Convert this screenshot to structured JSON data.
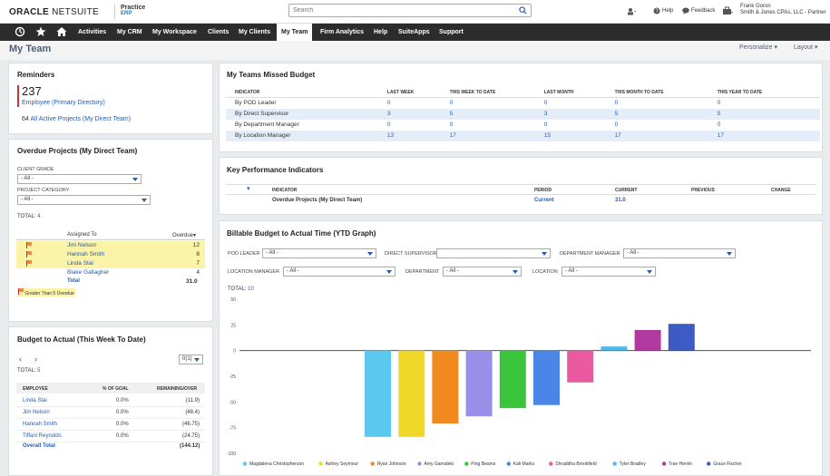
{
  "header": {
    "logo_oracle": "ORACLE",
    "logo_netsuite": "NETSUITE",
    "practice_top": "Practice",
    "practice_bottom": "ERP",
    "search_placeholder": "Search",
    "help": "Help",
    "feedback": "Feedback",
    "user_name": "Frank Goron",
    "user_company": "Smith & Jones CPAs, LLC - Partner"
  },
  "nav": [
    "Activities",
    "My CRM",
    "My Workspace",
    "Clients",
    "My Clients",
    "My Team",
    "Firm Analytics",
    "Help",
    "SuiteApps",
    "Support"
  ],
  "page": {
    "title": "My Team",
    "personalize": "Personalize",
    "layout": "Layout"
  },
  "reminders": {
    "title": "Reminders",
    "count": "237",
    "count_label": "Employee (Primary Directory)",
    "active_count": "64",
    "active_label": "All Active Projects (My Direct Team)"
  },
  "overdue": {
    "title": "Overdue Projects (My Direct Team)",
    "grade_label": "CLIENT GRADE",
    "grade_value": "- All -",
    "category_label": "PROJECT CATEGORY",
    "category_value": "- All -",
    "total_label": "TOTAL:",
    "total_value": "4",
    "col_assigned": "Assigned To",
    "col_overdue": "Overdue",
    "rows": [
      {
        "name": "Jim Nelson",
        "value": "12",
        "flag": true
      },
      {
        "name": "Hannah Smith",
        "value": "8",
        "flag": true
      },
      {
        "name": "Linda Stai",
        "value": "7",
        "flag": true
      },
      {
        "name": "Blake Gallagher",
        "value": "4",
        "flag": false
      }
    ],
    "total_row_label": "Total",
    "total_row_value": "31.0",
    "legend": "Greater Than 5 Overdue"
  },
  "budget_actual": {
    "title": "Budget to Actual (This Week To Date)",
    "pager": "0(1)",
    "total_label": "TOTAL:",
    "total_value": "5",
    "cols": [
      "EMPLOYEE",
      "% OF GOAL",
      "REMAINING/OVER"
    ],
    "rows": [
      {
        "name": "Linda Stai",
        "pct": "0.0%",
        "rem": "(11.9)"
      },
      {
        "name": "Jim Nelson",
        "pct": "0.0%",
        "rem": "(48.4)"
      },
      {
        "name": "Hannah Smith",
        "pct": "0.0%",
        "rem": "(46.75)"
      },
      {
        "name": "Tiffani Reynolds",
        "pct": "0.0%",
        "rem": "(24.75)"
      }
    ],
    "total_row_label": "Overall Total",
    "total_row_value": "(144.12)"
  },
  "missed_budget": {
    "title": "My Teams Missed Budget",
    "cols": [
      "INDICATOR",
      "LAST WEEK",
      "THIS WEEK TO DATE",
      "LAST MONTH",
      "THIS MONTH TO DATE",
      "THIS YEAR TO DATE"
    ],
    "rows": [
      [
        "By POD Leader",
        "0",
        "0",
        "0",
        "0",
        "0"
      ],
      [
        "By Direct Supervisor",
        "3",
        "5",
        "3",
        "5",
        "5"
      ],
      [
        "By Department Manager",
        "0",
        "0",
        "0",
        "0",
        "0"
      ],
      [
        "By Location Manager",
        "13",
        "17",
        "15",
        "17",
        "17"
      ]
    ]
  },
  "kpi": {
    "title": "Key Performance Indicators",
    "cols": [
      "INDICATOR",
      "PERIOD",
      "CURRENT",
      "PREVIOUS",
      "CHANGE"
    ],
    "row": {
      "indicator": "Overdue Projects (My Direct Team)",
      "period": "Current",
      "current": "31.0",
      "previous": "",
      "change": ""
    }
  },
  "billable": {
    "title": "Billable Budget to Actual Time (YTD Graph)",
    "filters": {
      "pod_leader": {
        "label": "POD LEADER",
        "value": "- All -"
      },
      "direct_supervisor": {
        "label": "DIRECT SUPERVISOR",
        "value": ""
      },
      "department_manager": {
        "label": "DEPARTMENT MANAGER",
        "value": "- All -"
      },
      "location_manager": {
        "label": "LOCATION MANAGER",
        "value": "- All -"
      },
      "department": {
        "label": "DEPARTMENT",
        "value": "- All -"
      },
      "location": {
        "label": "LOCATION",
        "value": "- All -"
      }
    },
    "total_label": "TOTAL:",
    "total_value": "10"
  },
  "chart_data": {
    "type": "bar",
    "ylim": [
      -100,
      50
    ],
    "yticks": [
      "50",
      "25",
      "0",
      "-25",
      "-50",
      "-75",
      "-100"
    ],
    "series": [
      {
        "name": "Magdalena Christopherson",
        "value": -84,
        "color": "#5bc8f0"
      },
      {
        "name": "Ashley Seymour",
        "value": -84,
        "color": "#f0d82a"
      },
      {
        "name": "Ryan Johnson",
        "value": -71,
        "color": "#f08a1e"
      },
      {
        "name": "Amy Gamaleki",
        "value": -64,
        "color": "#9a8fe8"
      },
      {
        "name": "Ping Beams",
        "value": -56,
        "color": "#3cc43c"
      },
      {
        "name": "Kali Marks",
        "value": -53,
        "color": "#4a86e8"
      },
      {
        "name": "Shraddha Brookfield",
        "value": -31,
        "color": "#ea5aa0"
      },
      {
        "name": "Tyler Bradley",
        "value": 4,
        "color": "#4fb8ec"
      },
      {
        "name": "Trae Hervin",
        "value": 20,
        "color": "#b03aa0"
      },
      {
        "name": "Grace Fischer",
        "value": 26,
        "color": "#3d5bc4"
      }
    ]
  }
}
